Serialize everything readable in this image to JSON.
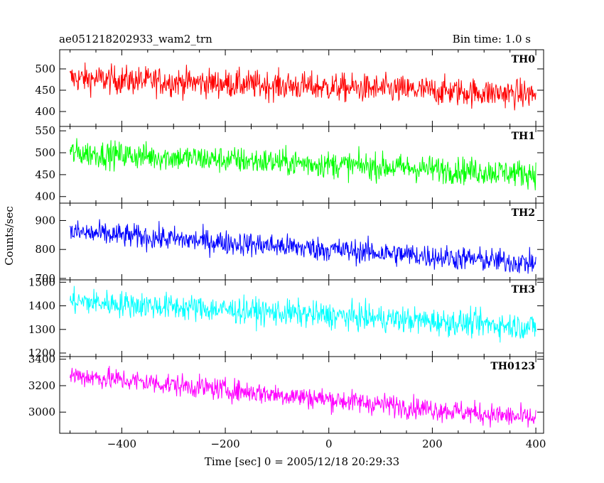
{
  "header": {
    "title": "ae051218202933_wam2_trn",
    "bin_time": "Bin time: 1.0 s"
  },
  "chart_data": {
    "type": "line",
    "xlabel": "Time [sec] 0 = 2005/12/18 20:29:33",
    "ylabel": "Counts/sec",
    "xlim": [
      -520,
      415
    ],
    "xticks": [
      -400,
      -200,
      0,
      200,
      400
    ],
    "x_start": -500,
    "x_end": 400,
    "x_step": 1,
    "panels": [
      {
        "name": "TH0",
        "color": "#ff0000",
        "ylim": [
          365,
          545
        ],
        "yticks": [
          400,
          450,
          500
        ],
        "trend": [
          {
            "x": -500,
            "y": 478
          },
          {
            "x": 400,
            "y": 440
          }
        ],
        "noise": 24
      },
      {
        "name": "TH1",
        "color": "#00ff00",
        "ylim": [
          385,
          560
        ],
        "yticks": [
          400,
          450,
          500,
          550
        ],
        "trend": [
          {
            "x": -500,
            "y": 500
          },
          {
            "x": 400,
            "y": 452
          }
        ],
        "noise": 22
      },
      {
        "name": "TH2",
        "color": "#0000ff",
        "ylim": [
          695,
          960
        ],
        "yticks": [
          700,
          800,
          900
        ],
        "trend": [
          {
            "x": -500,
            "y": 860
          },
          {
            "x": 400,
            "y": 752
          }
        ],
        "noise": 30
      },
      {
        "name": "TH3",
        "color": "#00ffff",
        "ylim": [
          1185,
          1510
        ],
        "yticks": [
          1200,
          1300,
          1400,
          1500
        ],
        "trend": [
          {
            "x": -500,
            "y": 1420
          },
          {
            "x": 400,
            "y": 1310
          }
        ],
        "noise": 40
      },
      {
        "name": "TH0123",
        "color": "#ff00ff",
        "ylim": [
          2840,
          3420
        ],
        "yticks": [
          3000,
          3200,
          3400
        ],
        "trend": [
          {
            "x": -500,
            "y": 3280
          },
          {
            "x": 400,
            "y": 2950
          }
        ],
        "noise": 60
      }
    ]
  }
}
